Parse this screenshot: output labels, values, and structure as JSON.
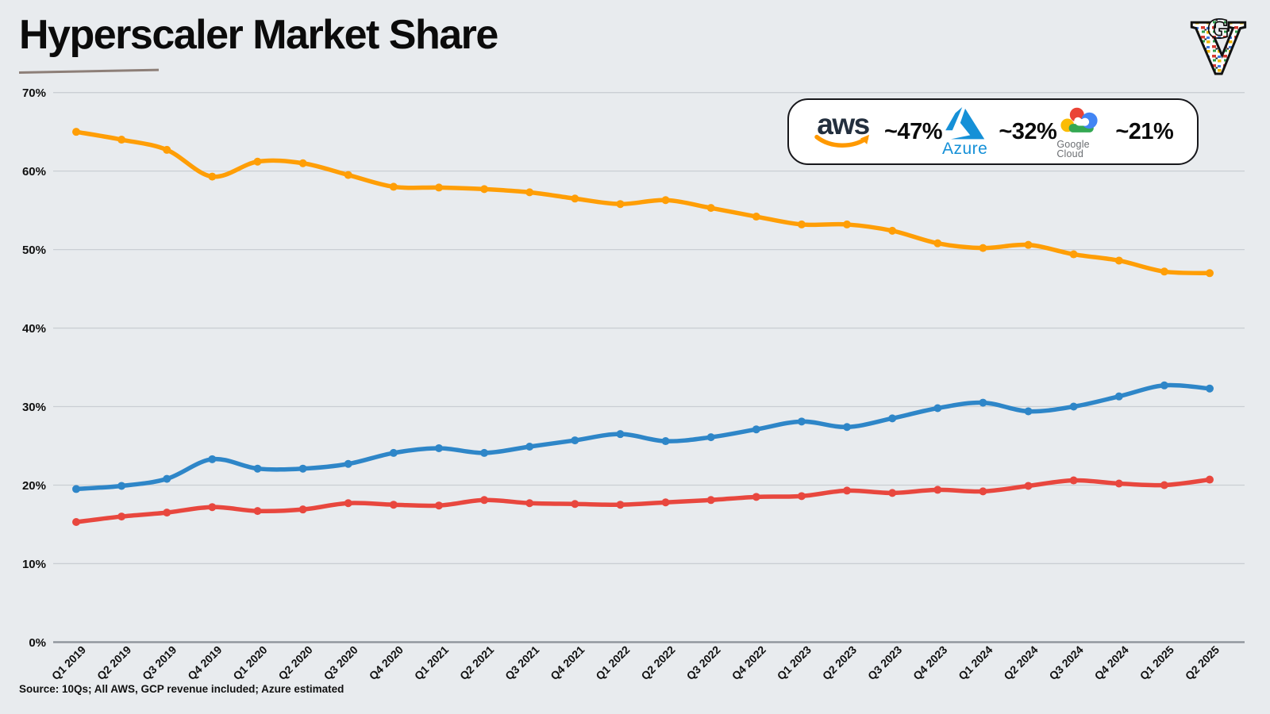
{
  "page": {
    "title": "Hyperscaler Market Share",
    "source_note": "Source: 10Qs; All AWS, GCP revenue included; Azure estimated",
    "brand_logo": {
      "outer_letter": "V",
      "inner_letter": "G"
    }
  },
  "legend": {
    "items": [
      {
        "name": "AWS",
        "logo_text": "aws",
        "value": "~47%"
      },
      {
        "name": "Azure",
        "logo_text": "Azure",
        "value": "~32%"
      },
      {
        "name": "Google Cloud",
        "logo_text": "Google Cloud",
        "value": "~21%"
      }
    ]
  },
  "colors": {
    "aws_line": "#FF9E06",
    "azure_line": "#2E86C8",
    "google_line": "#E8473E",
    "background": "#e8ebee",
    "gridline": "#caced3",
    "axis_line": "#8e949b"
  },
  "chart_data": {
    "type": "line",
    "title": "Hyperscaler Market Share",
    "xlabel": "",
    "ylabel": "",
    "ylim": [
      0,
      70
    ],
    "y_ticks": [
      0,
      10,
      20,
      30,
      40,
      50,
      60,
      70
    ],
    "y_tick_suffix": "%",
    "grid": true,
    "legend_position": "top-right",
    "categories": [
      "Q1 2019",
      "Q2 2019",
      "Q3 2019",
      "Q4 2019",
      "Q1 2020",
      "Q2 2020",
      "Q3 2020",
      "Q4 2020",
      "Q1 2021",
      "Q2 2021",
      "Q3 2021",
      "Q4 2021",
      "Q1 2022",
      "Q2 2022",
      "Q3 2022",
      "Q4 2022",
      "Q1 2023",
      "Q2 2023",
      "Q3 2023",
      "Q4 2023",
      "Q1 2024",
      "Q2 2024",
      "Q3 2024",
      "Q4 2024",
      "Q1 2025",
      "Q2 2025"
    ],
    "series": [
      {
        "name": "AWS",
        "color": "#FF9E06",
        "approx_current": "~47%",
        "values": [
          65.0,
          64.0,
          62.7,
          59.3,
          61.2,
          61.0,
          59.5,
          58.0,
          57.9,
          57.7,
          57.3,
          56.5,
          55.8,
          56.3,
          55.3,
          54.2,
          53.2,
          53.2,
          52.4,
          50.8,
          50.2,
          50.6,
          49.4,
          48.6,
          47.2,
          47.0
        ]
      },
      {
        "name": "Azure",
        "color": "#2E86C8",
        "approx_current": "~32%",
        "values": [
          19.5,
          19.9,
          20.8,
          23.3,
          22.1,
          22.1,
          22.7,
          24.1,
          24.7,
          24.1,
          24.9,
          25.7,
          26.5,
          25.6,
          26.1,
          27.1,
          28.1,
          27.4,
          28.5,
          29.8,
          30.5,
          29.4,
          30.0,
          31.3,
          32.7,
          32.3
        ]
      },
      {
        "name": "Google Cloud",
        "color": "#E8473E",
        "approx_current": "~21%",
        "values": [
          15.3,
          16.0,
          16.5,
          17.2,
          16.7,
          16.9,
          17.7,
          17.5,
          17.4,
          18.1,
          17.7,
          17.6,
          17.5,
          17.8,
          18.1,
          18.5,
          18.6,
          19.3,
          19.0,
          19.4,
          19.2,
          19.9,
          20.6,
          20.2,
          20.0,
          20.7
        ]
      }
    ]
  }
}
